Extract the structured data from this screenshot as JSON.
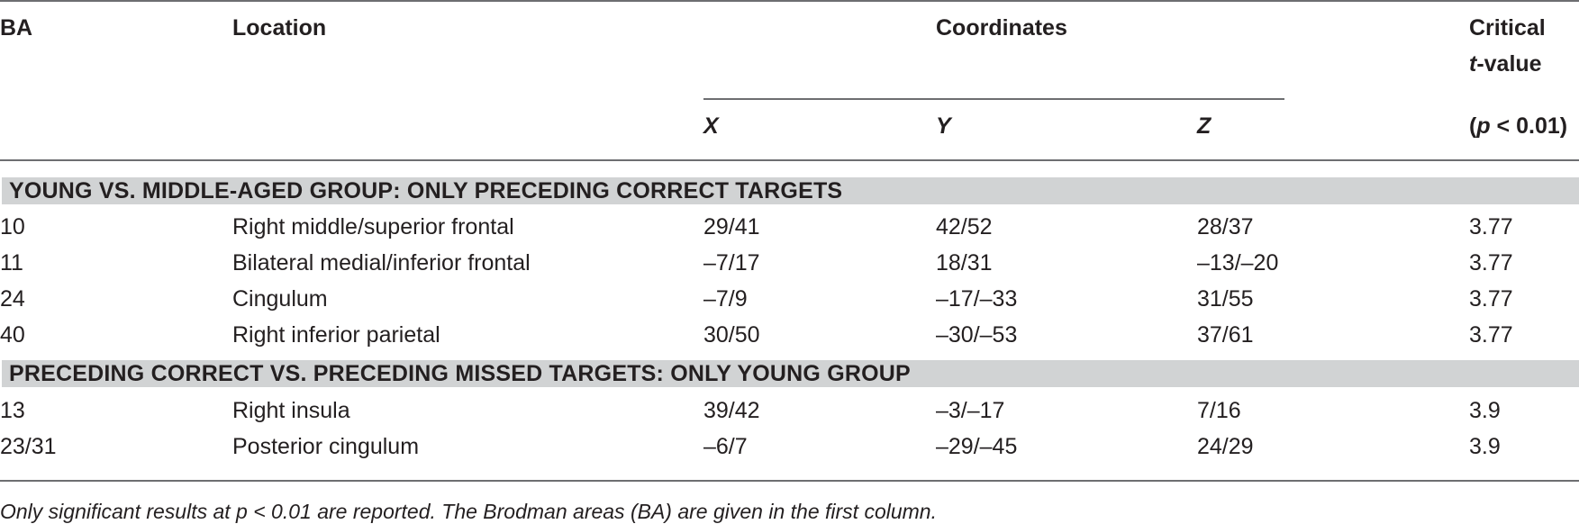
{
  "header": {
    "ba": "BA",
    "location": "Location",
    "coordinates": "Coordinates",
    "critical_line1": "Critical",
    "critical_t": "t",
    "critical_value": "-value",
    "x": "X",
    "y": "Y",
    "z": "Z",
    "p_open": "(",
    "p_letter": "p",
    "p_rest": " < 0.01)"
  },
  "sections": [
    {
      "title": "YOUNG VS. MIDDLE-AGED GROUP: ONLY PRECEDING CORRECT TARGETS",
      "rows": [
        {
          "ba": "10",
          "location": "Right middle/superior frontal",
          "x": "29/41",
          "y": "42/52",
          "z": "28/37",
          "t": "3.77"
        },
        {
          "ba": "11",
          "location": "Bilateral medial/inferior frontal",
          "x": "–7/17",
          "y": "18/31",
          "z": "–13/–20",
          "t": "3.77"
        },
        {
          "ba": "24",
          "location": "Cingulum",
          "x": "–7/9",
          "y": "–17/–33",
          "z": "31/55",
          "t": "3.77"
        },
        {
          "ba": "40",
          "location": "Right inferior parietal",
          "x": "30/50",
          "y": "–30/–53",
          "z": "37/61",
          "t": "3.77"
        }
      ]
    },
    {
      "title": "PRECEDING CORRECT VS. PRECEDING MISSED TARGETS: ONLY YOUNG GROUP",
      "rows": [
        {
          "ba": "13",
          "location": "Right insula",
          "x": "39/42",
          "y": "–3/–17",
          "z": "7/16",
          "t": "3.9"
        },
        {
          "ba": "23/31",
          "location": "Posterior cingulum",
          "x": "–6/7",
          "y": "–29/–45",
          "z": "24/29",
          "t": "3.9"
        }
      ]
    }
  ],
  "footnote": "Only significant results at p < 0.01 are reported. The Brodman areas (BA) are given in the first column."
}
